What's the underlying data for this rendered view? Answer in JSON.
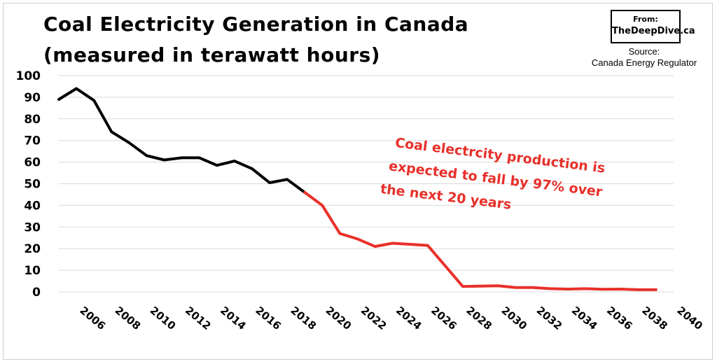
{
  "header": {
    "title_line1": "Coal Electricity Generation in Canada",
    "title_line2": "(measured in terawatt hours)",
    "badge_from": "From:",
    "badge_site": "TheDeepDive.ca",
    "source_label": "Source:",
    "source_name": "Canada Energy Regulator"
  },
  "chart_data": {
    "type": "line",
    "title": "Coal Electricity Generation in Canada (measured in terawatt hours)",
    "xlabel": "",
    "ylabel": "",
    "xlim": [
      2005,
      2040
    ],
    "ylim": [
      0,
      100
    ],
    "grid": true,
    "y_ticks": [
      0,
      10,
      20,
      30,
      40,
      50,
      60,
      70,
      80,
      90,
      100
    ],
    "x_ticks": [
      2006,
      2008,
      2010,
      2012,
      2014,
      2016,
      2018,
      2020,
      2022,
      2024,
      2026,
      2028,
      2030,
      2032,
      2034,
      2036,
      2038,
      2040
    ],
    "colors": {
      "historical": "#000000",
      "projected": "#e8302a",
      "grid": "#d9d9d9"
    },
    "series": [
      {
        "x": [
          2005,
          2006,
          2007,
          2008,
          2009,
          2010,
          2011,
          2012,
          2013,
          2014,
          2015,
          2016,
          2017,
          2018,
          2019
        ],
        "y": [
          89,
          94,
          88.5,
          74,
          69,
          63,
          61,
          62,
          62,
          58.5,
          60.5,
          57,
          50.5,
          52,
          46
        ]
      },
      {
        "x": [
          2019,
          2020,
          2021,
          2022,
          2023,
          2024,
          2025,
          2026,
          2027,
          2028,
          2029,
          2030,
          2031,
          2032,
          2033,
          2034,
          2035,
          2036,
          2037,
          2038,
          2039
        ],
        "y": [
          46,
          40,
          27,
          24.5,
          21,
          22.5,
          22,
          21.5,
          12,
          2.5,
          2.7,
          2.8,
          2,
          2,
          1.5,
          1.3,
          1.5,
          1.2,
          1.3,
          1,
          1
        ]
      }
    ],
    "annotation": [
      "Coal electrcity production is",
      "expected to fall by 97% over",
      "the next 20 years"
    ]
  }
}
